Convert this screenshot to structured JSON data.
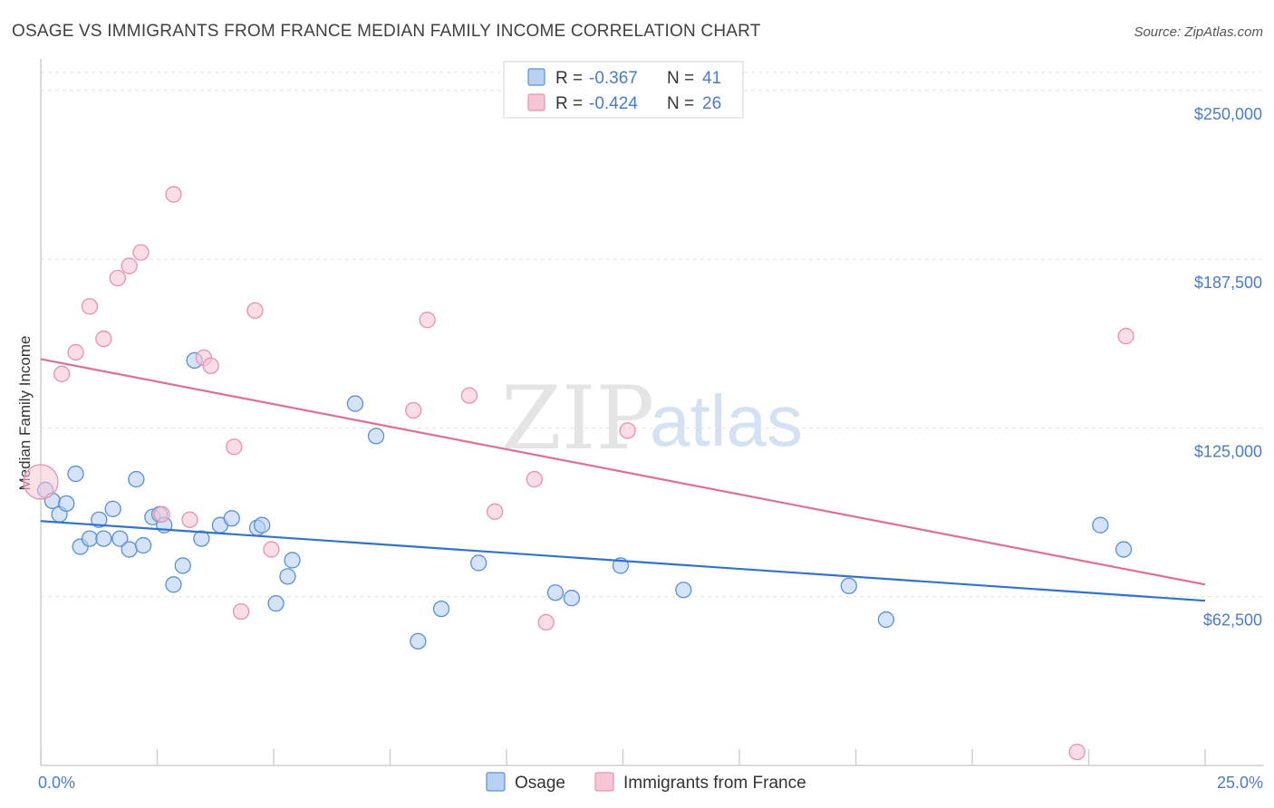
{
  "title": "OSAGE VS IMMIGRANTS FROM FRANCE MEDIAN FAMILY INCOME CORRELATION CHART",
  "source": "Source: ZipAtlas.com",
  "watermark": {
    "zip": "ZIP",
    "atlas": "atlas"
  },
  "colors": {
    "osage_fill": "#b8d0f2",
    "osage_stroke": "#5b8fd6",
    "osage_line": "#2f72cf",
    "france_fill": "#f7c6d4",
    "france_stroke": "#e891ab",
    "france_line": "#e06d96"
  },
  "legend": {
    "rows": [
      {
        "r_label": "R =",
        "r_value": "-0.367",
        "n_label": "N =",
        "n_value": "41"
      },
      {
        "r_label": "R =",
        "r_value": "-0.424",
        "n_label": "N =",
        "n_value": "26"
      }
    ]
  },
  "bottom_legend": [
    "Osage",
    "Immigrants from France"
  ],
  "chart_data": {
    "type": "scatter",
    "title": "OSAGE VS IMMIGRANTS FROM FRANCE MEDIAN FAMILY INCOME CORRELATION CHART",
    "xlabel": "",
    "ylabel": "Median Family Income",
    "xlim": [
      0,
      25
    ],
    "ylim": [
      0,
      260000
    ],
    "x_tick_labels": [
      "0.0%",
      "25.0%"
    ],
    "y_ticks": [
      62500,
      125000,
      187500,
      250000
    ],
    "y_tick_labels": [
      "$62,500",
      "$125,000",
      "$187,500",
      "$250,000"
    ],
    "grid": true,
    "series": [
      {
        "name": "Osage",
        "r": -0.367,
        "n": 41,
        "trend": {
          "x": [
            0,
            25
          ],
          "y": [
            90500,
            61000
          ]
        },
        "points": [
          {
            "x": 0.1,
            "y": 102000,
            "big": false
          },
          {
            "x": 0.25,
            "y": 98000
          },
          {
            "x": 0.4,
            "y": 93000
          },
          {
            "x": 0.55,
            "y": 97000
          },
          {
            "x": 0.75,
            "y": 108000
          },
          {
            "x": 0.85,
            "y": 81000
          },
          {
            "x": 1.05,
            "y": 84000
          },
          {
            "x": 1.25,
            "y": 91000
          },
          {
            "x": 1.35,
            "y": 84000
          },
          {
            "x": 1.55,
            "y": 95000
          },
          {
            "x": 1.7,
            "y": 84000
          },
          {
            "x": 1.9,
            "y": 80000
          },
          {
            "x": 2.05,
            "y": 106000
          },
          {
            "x": 2.2,
            "y": 81500
          },
          {
            "x": 2.4,
            "y": 92000
          },
          {
            "x": 2.55,
            "y": 93000
          },
          {
            "x": 2.65,
            "y": 89000
          },
          {
            "x": 2.85,
            "y": 67000
          },
          {
            "x": 3.05,
            "y": 74000
          },
          {
            "x": 3.3,
            "y": 150000
          },
          {
            "x": 3.45,
            "y": 84000
          },
          {
            "x": 3.85,
            "y": 89000
          },
          {
            "x": 4.1,
            "y": 91500
          },
          {
            "x": 4.65,
            "y": 88000
          },
          {
            "x": 4.75,
            "y": 89000
          },
          {
            "x": 5.05,
            "y": 60000
          },
          {
            "x": 5.3,
            "y": 70000
          },
          {
            "x": 5.4,
            "y": 76000
          },
          {
            "x": 6.75,
            "y": 134000
          },
          {
            "x": 7.2,
            "y": 122000
          },
          {
            "x": 8.1,
            "y": 46000
          },
          {
            "x": 8.6,
            "y": 58000
          },
          {
            "x": 9.4,
            "y": 75000
          },
          {
            "x": 11.05,
            "y": 64000
          },
          {
            "x": 11.4,
            "y": 62000
          },
          {
            "x": 12.45,
            "y": 74000
          },
          {
            "x": 13.8,
            "y": 65000
          },
          {
            "x": 17.35,
            "y": 66500
          },
          {
            "x": 18.15,
            "y": 54000
          },
          {
            "x": 22.75,
            "y": 89000
          },
          {
            "x": 23.25,
            "y": 80000
          }
        ]
      },
      {
        "name": "Immigrants from France",
        "r": -0.424,
        "n": 26,
        "trend": {
          "x": [
            0,
            25
          ],
          "y": [
            150500,
            67000
          ]
        },
        "points": [
          {
            "x": 0.0,
            "y": 105000,
            "big": true
          },
          {
            "x": 0.45,
            "y": 145000
          },
          {
            "x": 0.75,
            "y": 153000
          },
          {
            "x": 1.05,
            "y": 170000
          },
          {
            "x": 1.35,
            "y": 158000
          },
          {
            "x": 1.65,
            "y": 180500
          },
          {
            "x": 1.9,
            "y": 185000
          },
          {
            "x": 2.15,
            "y": 190000
          },
          {
            "x": 2.6,
            "y": 93000
          },
          {
            "x": 2.85,
            "y": 211500
          },
          {
            "x": 3.2,
            "y": 91000
          },
          {
            "x": 3.5,
            "y": 151000
          },
          {
            "x": 3.65,
            "y": 148000
          },
          {
            "x": 4.15,
            "y": 118000
          },
          {
            "x": 4.3,
            "y": 57000
          },
          {
            "x": 4.6,
            "y": 168500
          },
          {
            "x": 4.95,
            "y": 80000
          },
          {
            "x": 8.0,
            "y": 131500
          },
          {
            "x": 8.3,
            "y": 165000
          },
          {
            "x": 9.2,
            "y": 137000
          },
          {
            "x": 9.75,
            "y": 94000
          },
          {
            "x": 10.6,
            "y": 106000
          },
          {
            "x": 10.85,
            "y": 53000
          },
          {
            "x": 12.6,
            "y": 124000
          },
          {
            "x": 22.25,
            "y": 5000
          },
          {
            "x": 23.3,
            "y": 159000
          }
        ]
      }
    ]
  }
}
